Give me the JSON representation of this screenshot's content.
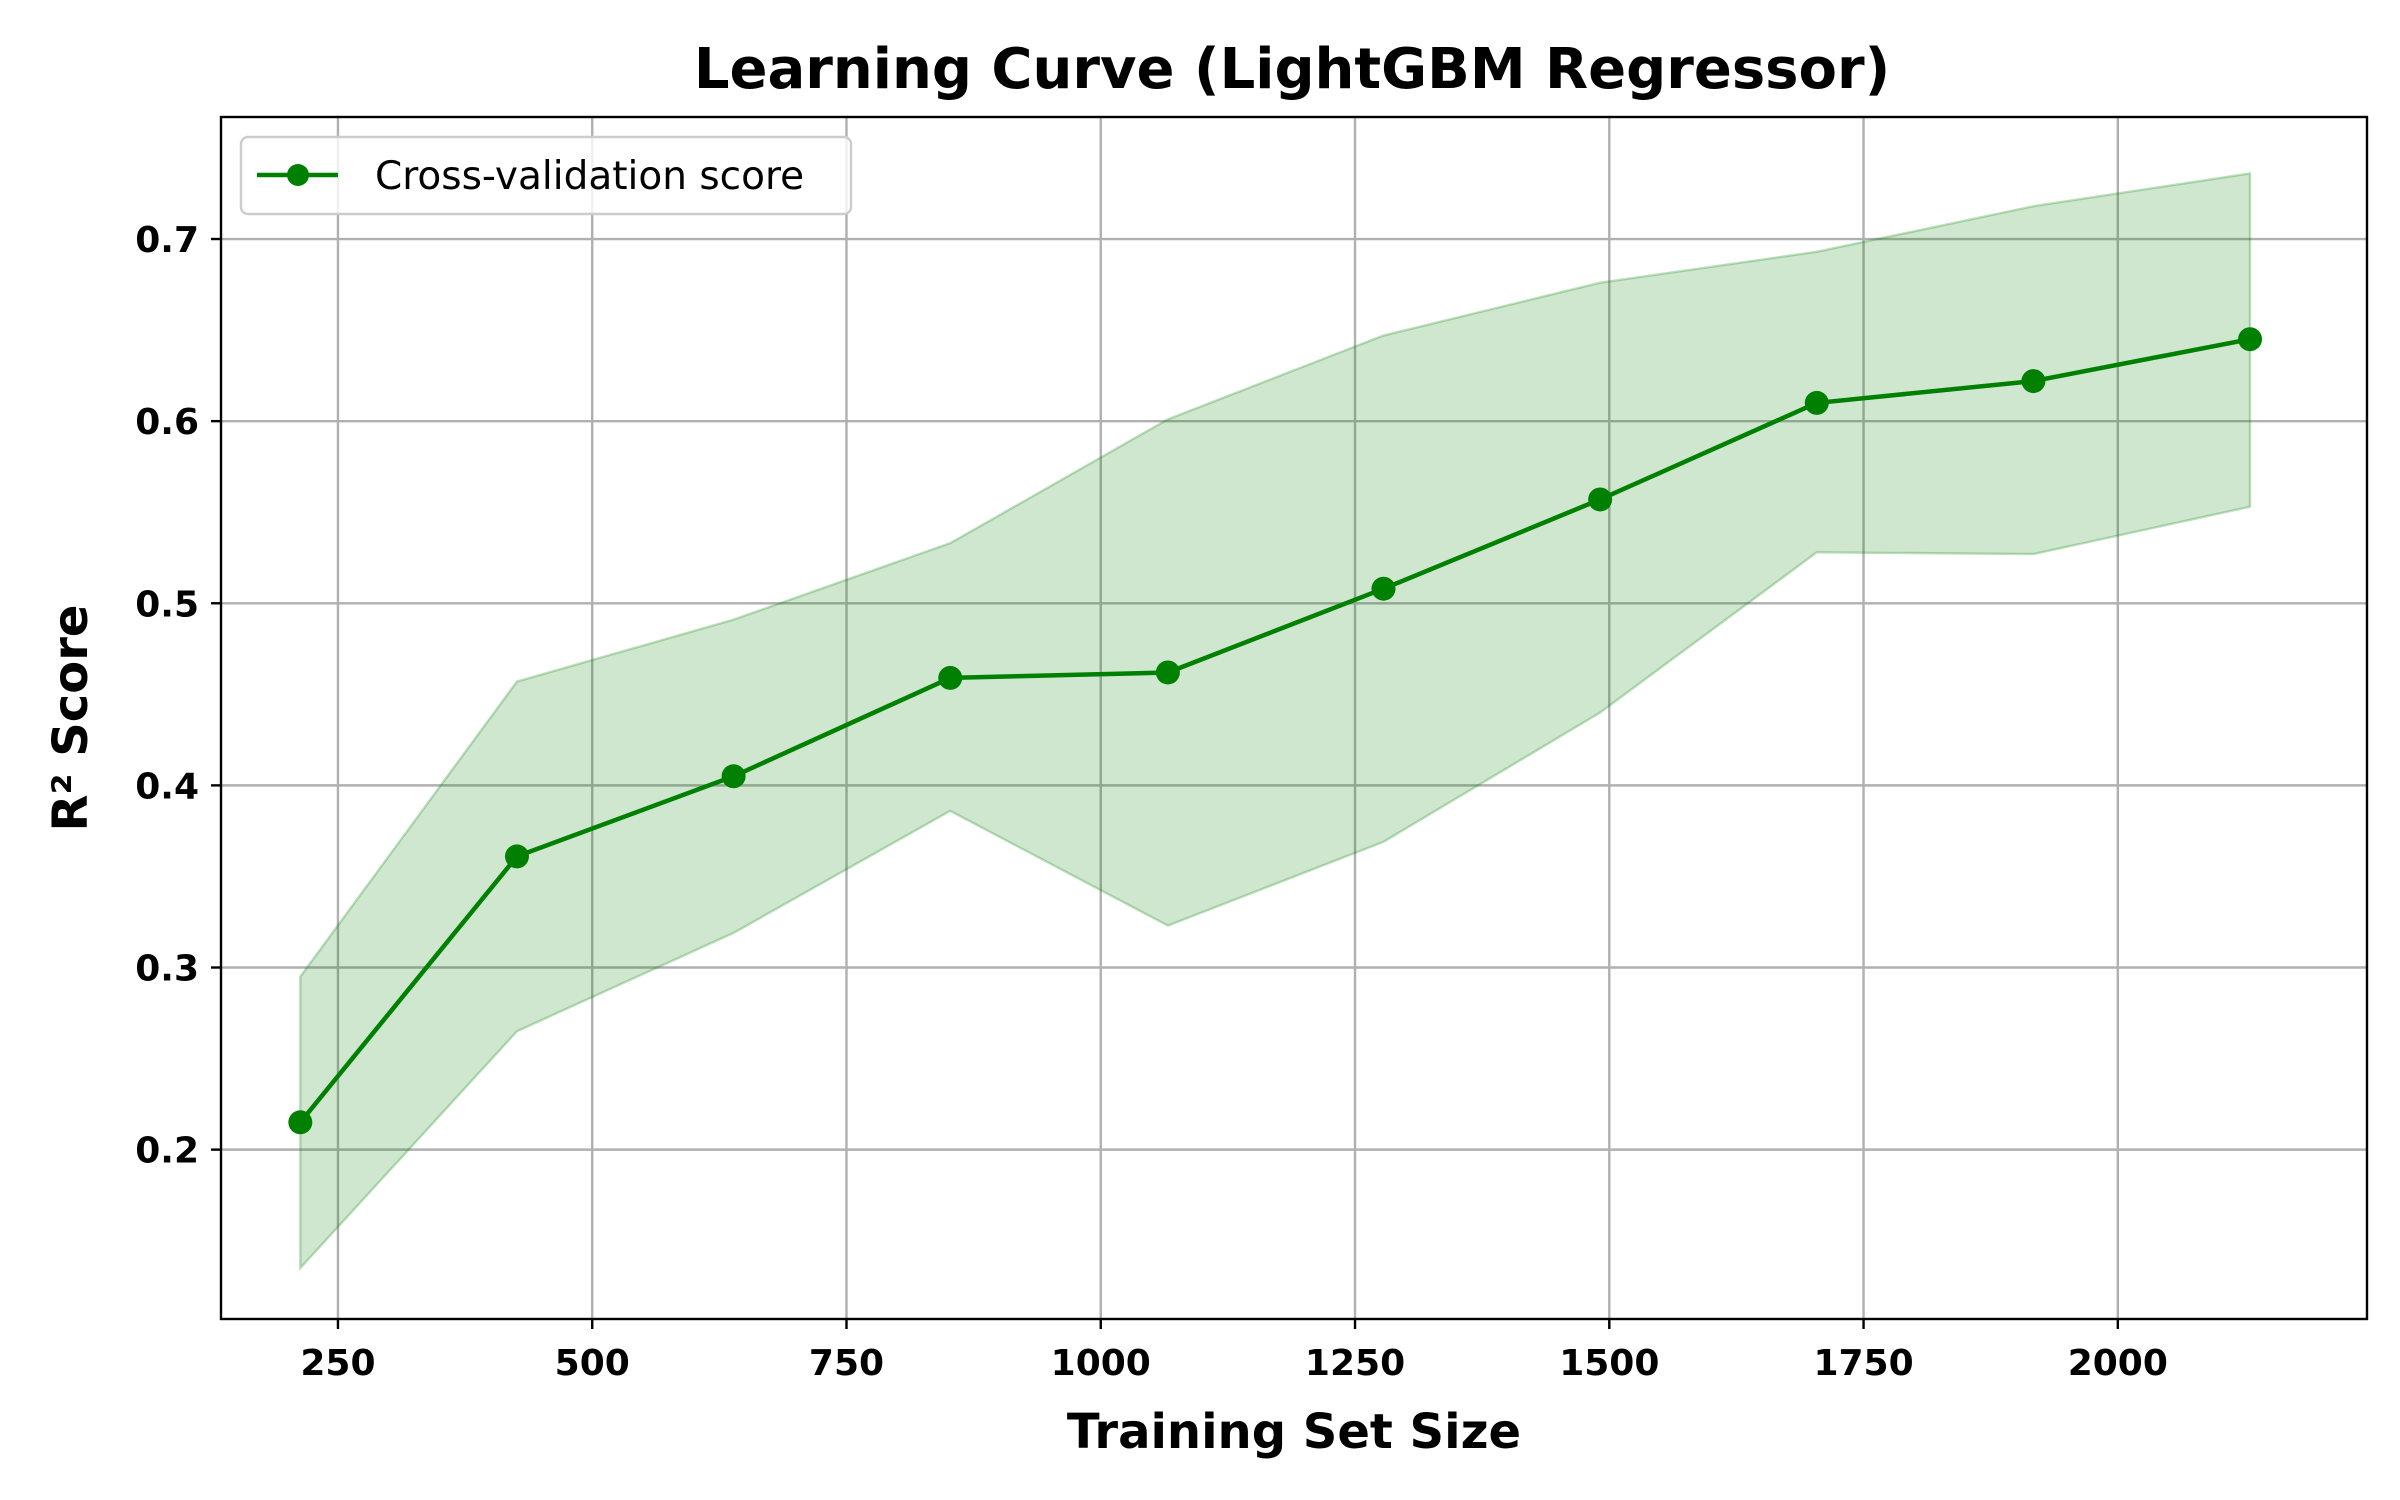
{
  "chart_data": {
    "type": "line",
    "title": "Learning Curve (LightGBM Regressor)",
    "xlabel": "Training Set Size",
    "ylabel": "R² Score",
    "xlim": [
      135,
      2245
    ],
    "ylim": [
      0.107,
      0.767
    ],
    "x_ticks": [
      250,
      500,
      750,
      1000,
      1250,
      1500,
      1750,
      2000
    ],
    "y_ticks": [
      0.2,
      0.3,
      0.4,
      0.5,
      0.6,
      0.7
    ],
    "x_tick_labels": [
      "250",
      "500",
      "750",
      "1000",
      "1250",
      "1500",
      "1750",
      "2000"
    ],
    "y_tick_labels": [
      "0.2",
      "0.3",
      "0.4",
      "0.5",
      "0.6",
      "0.7"
    ],
    "grid": true,
    "legend_position": "upper-left",
    "series": [
      {
        "name": "Cross-validation score",
        "color": "#008000",
        "marker": "circle",
        "x": [
          213,
          426,
          639,
          852,
          1066,
          1278,
          1491,
          1704,
          1917,
          2130
        ],
        "y": [
          0.215,
          0.361,
          0.405,
          0.459,
          0.462,
          0.508,
          0.557,
          0.61,
          0.622,
          0.645
        ],
        "band_color": "#008000",
        "band_opacity": 0.19,
        "band_lower": [
          0.135,
          0.265,
          0.319,
          0.386,
          0.323,
          0.369,
          0.44,
          0.528,
          0.527,
          0.553
        ],
        "band_upper": [
          0.295,
          0.457,
          0.491,
          0.533,
          0.601,
          0.647,
          0.676,
          0.693,
          0.718,
          0.736
        ]
      }
    ]
  }
}
